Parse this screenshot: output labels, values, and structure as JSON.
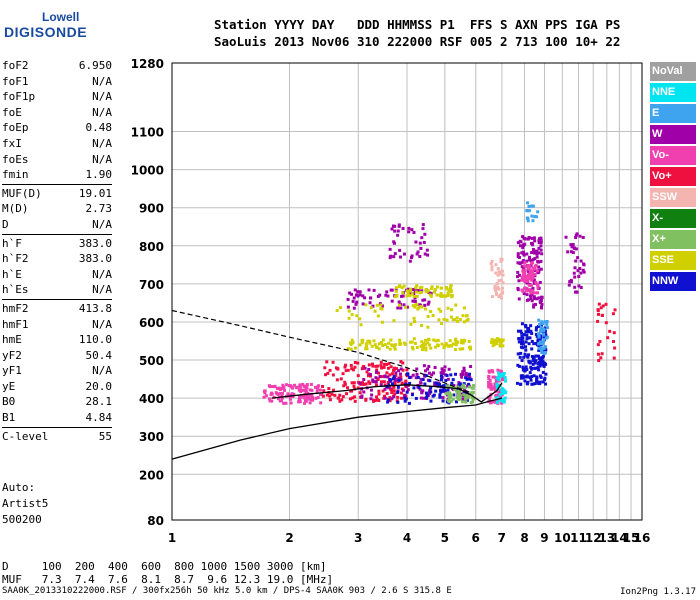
{
  "logo": {
    "line1": "Lowell",
    "line2": "DIGISONDE"
  },
  "header": {
    "line1": "Station YYYY DAY   DDD HHMMSS P1  FFS S AXN PPS IGA PS",
    "line2": "SaoLuis 2013 Nov06 310 222000 RSF 005 2 713 100 10+ 22"
  },
  "params": [
    [
      {
        "k": "foF2",
        "v": "6.950"
      },
      {
        "k": "foF1",
        "v": "N/A"
      },
      {
        "k": "foF1p",
        "v": "N/A"
      },
      {
        "k": "foE",
        "v": "N/A"
      },
      {
        "k": "foEp",
        "v": "0.48"
      },
      {
        "k": "fxI",
        "v": "N/A"
      },
      {
        "k": "foEs",
        "v": "N/A"
      },
      {
        "k": "fmin",
        "v": "1.90"
      }
    ],
    [
      {
        "k": "MUF(D)",
        "v": "19.01"
      },
      {
        "k": "M(D)",
        "v": "2.73"
      },
      {
        "k": "D",
        "v": "N/A"
      }
    ],
    [
      {
        "k": "h`F",
        "v": "383.0"
      },
      {
        "k": "h`F2",
        "v": "383.0"
      },
      {
        "k": "h`E",
        "v": "N/A"
      },
      {
        "k": "h`Es",
        "v": "N/A"
      }
    ],
    [
      {
        "k": "hmF2",
        "v": "413.8"
      },
      {
        "k": "hmF1",
        "v": "N/A"
      },
      {
        "k": "hmE",
        "v": "110.0"
      },
      {
        "k": "yF2",
        "v": "50.4"
      },
      {
        "k": "yF1",
        "v": "N/A"
      },
      {
        "k": "yE",
        "v": "20.0"
      },
      {
        "k": "B0",
        "v": "28.1"
      },
      {
        "k": "B1",
        "v": "4.84"
      }
    ],
    [
      {
        "k": "C-level",
        "v": "55"
      }
    ]
  ],
  "auto": {
    "l1": "Auto:",
    "l2": "Artist5",
    "l3": "500200"
  },
  "dmuf": {
    "d": "D     100  200  400  600  800 1000 1500 3000 [km]",
    "muf": "MUF   7.3  7.4  7.6  8.1  8.7  9.6 12.3 19.0 [MHz]"
  },
  "footer": "SAA0K_2013310222000.RSF / 300fx256h 50 kHz 5.0 km / DPS-4 SAA0K 903 / 2.6 S 315.8 E",
  "version": "Ion2Png 1.3.17",
  "legend": [
    {
      "label": "NoVal",
      "color": "#a0a0a0"
    },
    {
      "label": "NNE",
      "color": "#00e5f0"
    },
    {
      "label": "E",
      "color": "#3ea4f0"
    },
    {
      "label": "W",
      "color": "#a000a8"
    },
    {
      "label": "Vo-",
      "color": "#f040b0"
    },
    {
      "label": "Vo+",
      "color": "#f01040"
    },
    {
      "label": "SSW",
      "color": "#f4b4b0"
    },
    {
      "label": "X-",
      "color": "#108010"
    },
    {
      "label": "X+",
      "color": "#80c060"
    },
    {
      "label": "SSE",
      "color": "#d0d000"
    },
    {
      "label": "NNW",
      "color": "#1010d0"
    }
  ],
  "chart_data": {
    "type": "scatter",
    "xlim": [
      1,
      16
    ],
    "ylim": [
      80,
      1280
    ],
    "x_ticks": [
      1,
      2,
      3,
      4,
      5,
      6,
      7,
      8,
      9,
      10,
      11,
      12,
      13,
      14,
      15,
      16
    ],
    "y_ticks": [
      80,
      200,
      300,
      400,
      500,
      600,
      700,
      800,
      900,
      1000,
      1100,
      1280
    ],
    "y_tick_labels": [
      "80",
      "200",
      "300",
      "400",
      "500",
      "600",
      "700",
      "800",
      "900",
      "1000",
      "1100",
      "1280"
    ],
    "grid": true,
    "x_scale": "log",
    "clusters": [
      {
        "x": [
          1.7,
          2.4
        ],
        "y": [
          390,
          440
        ],
        "color": "#f040b0",
        "n": 120
      },
      {
        "x": [
          2.4,
          4.0
        ],
        "y": [
          395,
          500
        ],
        "color": "#f01040",
        "n": 160
      },
      {
        "x": [
          3.0,
          5.8
        ],
        "y": [
          400,
          490
        ],
        "color": "#a000a8",
        "n": 140
      },
      {
        "x": [
          3.5,
          5.8
        ],
        "y": [
          390,
          470
        ],
        "color": "#1010d0",
        "n": 90
      },
      {
        "x": [
          5.0,
          5.9
        ],
        "y": [
          390,
          440
        ],
        "color": "#80c060",
        "n": 60
      },
      {
        "x": [
          6.4,
          7.0
        ],
        "y": [
          390,
          480
        ],
        "color": "#f040b0",
        "n": 70
      },
      {
        "x": [
          6.7,
          7.1
        ],
        "y": [
          390,
          470
        ],
        "color": "#00e5f0",
        "n": 40
      },
      {
        "x": [
          7.6,
          9.0
        ],
        "y": [
          440,
          600
        ],
        "color": "#1010d0",
        "n": 180
      },
      {
        "x": [
          8.6,
          9.1
        ],
        "y": [
          520,
          610
        ],
        "color": "#3ea4f0",
        "n": 40
      },
      {
        "x": [
          2.8,
          5.8
        ],
        "y": [
          530,
          560
        ],
        "color": "#d0d000",
        "n": 110
      },
      {
        "x": [
          6.5,
          7.0
        ],
        "y": [
          540,
          560
        ],
        "color": "#d0d000",
        "n": 30
      },
      {
        "x": [
          2.8,
          4.6
        ],
        "y": [
          640,
          690
        ],
        "color": "#a000a8",
        "n": 70
      },
      {
        "x": [
          3.6,
          5.2
        ],
        "y": [
          670,
          700
        ],
        "color": "#d0d000",
        "n": 60
      },
      {
        "x": [
          2.6,
          5.7
        ],
        "y": [
          590,
          650
        ],
        "color": "#d0d000",
        "n": 60
      },
      {
        "x": [
          6.5,
          7.0
        ],
        "y": [
          660,
          780
        ],
        "color": "#f4b4b0",
        "n": 40
      },
      {
        "x": [
          7.6,
          8.8
        ],
        "y": [
          640,
          830
        ],
        "color": "#a000a8",
        "n": 130
      },
      {
        "x": [
          7.8,
          8.6
        ],
        "y": [
          680,
          760
        ],
        "color": "#f040b0",
        "n": 70
      },
      {
        "x": [
          10.1,
          11.3
        ],
        "y": [
          680,
          840
        ],
        "color": "#a000a8",
        "n": 40
      },
      {
        "x": [
          12.2,
          13.6
        ],
        "y": [
          500,
          660
        ],
        "color": "#f01040",
        "n": 25
      },
      {
        "x": [
          3.5,
          4.5
        ],
        "y": [
          760,
          860
        ],
        "color": "#a000a8",
        "n": 40
      },
      {
        "x": [
          8.0,
          8.6
        ],
        "y": [
          860,
          920
        ],
        "color": "#3ea4f0",
        "n": 15
      }
    ],
    "profile_curve": {
      "x": [
        1,
        1.5,
        2,
        3,
        4,
        5,
        6,
        6.5,
        7.0
      ],
      "y": [
        240,
        290,
        320,
        350,
        365,
        375,
        382,
        392,
        400
      ]
    },
    "trace_curve": {
      "x": [
        1.8,
        2.2,
        2.8,
        3.3,
        4.0,
        4.8,
        5.4,
        5.8,
        6.2,
        6.8,
        7.0
      ],
      "y": [
        400,
        410,
        420,
        430,
        435,
        430,
        425,
        410,
        390,
        420,
        440
      ]
    },
    "dashed_curve": {
      "x": [
        1.0,
        1.5,
        2.0,
        3.0,
        4.0,
        5.0,
        5.8
      ],
      "y": [
        630,
        590,
        560,
        520,
        480,
        440,
        415
      ]
    }
  }
}
